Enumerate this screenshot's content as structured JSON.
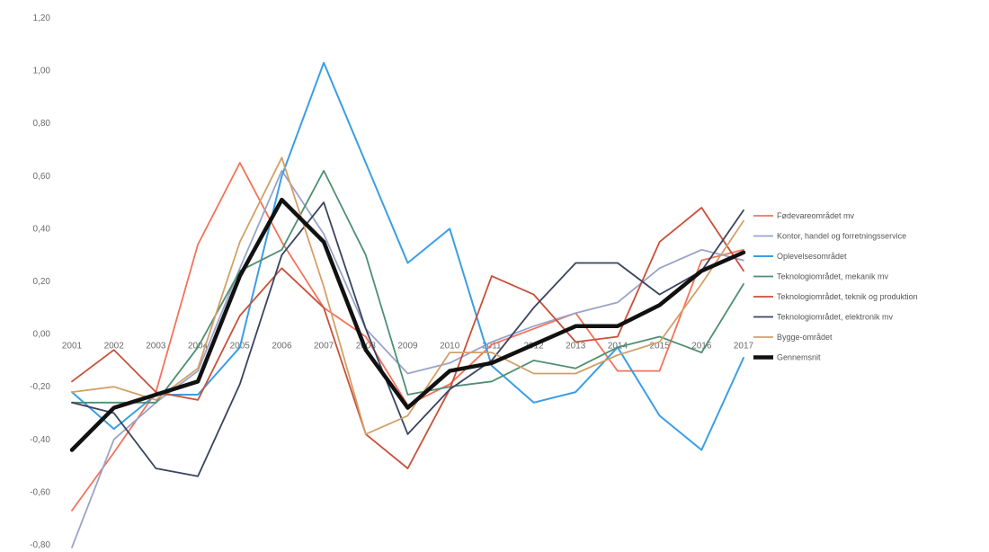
{
  "chart_data": {
    "type": "line",
    "title": "",
    "xlabel": "",
    "ylabel": "",
    "ylim": [
      -0.8,
      1.2
    ],
    "yticks": [
      -0.8,
      -0.6,
      -0.4,
      -0.2,
      0.0,
      0.2,
      0.4,
      0.6,
      0.8,
      1.0,
      1.2
    ],
    "ytick_labels": [
      "-0,80",
      "-0,60",
      "-0,40",
      "-0,20",
      "0,00",
      "0,20",
      "0,40",
      "0,60",
      "0,80",
      "1,00",
      "1,20"
    ],
    "categories": [
      "2001",
      "2002",
      "2003",
      "2004",
      "2005",
      "2006",
      "2007",
      "2008",
      "2009",
      "2010",
      "2011",
      "2012",
      "2013",
      "2014",
      "2015",
      "2016",
      "2017"
    ],
    "category_labels": [
      "2001",
      "2002",
      "2003",
      "2004",
      "2005",
      "2006",
      "2007",
      "2008",
      "2009",
      "2010",
      "2011",
      "2012",
      "2013",
      "2014",
      "2015",
      "2016",
      "2017"
    ],
    "legend_position": "right",
    "grid": false,
    "series": [
      {
        "name": "Fødevareområdet mv",
        "color": "#f4725a",
        "width": 1.8,
        "values": [
          -0.67,
          -0.45,
          -0.22,
          0.34,
          0.65,
          0.35,
          0.1,
          -0.01,
          -0.27,
          -0.19,
          -0.04,
          0.02,
          0.08,
          -0.14,
          -0.14,
          0.28,
          0.32
        ]
      },
      {
        "name": "Kontor, handel og forretningsservice",
        "color": "#9aa3c9",
        "width": 1.8,
        "values": [
          -0.81,
          -0.4,
          -0.26,
          -0.14,
          0.25,
          0.62,
          0.38,
          0.02,
          -0.15,
          -0.11,
          -0.03,
          0.03,
          0.08,
          0.12,
          0.25,
          0.32,
          0.28
        ]
      },
      {
        "name": "Oplevelsesområdet",
        "color": "#3a9ee4",
        "width": 2.0,
        "values": [
          -0.22,
          -0.36,
          -0.23,
          -0.23,
          -0.05,
          0.6,
          1.03,
          0.65,
          0.27,
          0.4,
          -0.12,
          -0.26,
          -0.22,
          -0.05,
          -0.31,
          -0.44,
          -0.09
        ]
      },
      {
        "name": "Teknologiområdet, mekanik mv",
        "color": "#4f8f72",
        "width": 1.8,
        "values": [
          -0.26,
          -0.26,
          -0.26,
          -0.05,
          0.24,
          0.32,
          0.62,
          0.3,
          -0.23,
          -0.2,
          -0.18,
          -0.1,
          -0.13,
          -0.05,
          -0.01,
          -0.07,
          0.19
        ]
      },
      {
        "name": "Teknologiområdet, teknik og produktion",
        "color": "#c9503a",
        "width": 1.8,
        "values": [
          -0.18,
          -0.06,
          -0.22,
          -0.25,
          0.07,
          0.25,
          0.1,
          -0.38,
          -0.51,
          -0.21,
          0.22,
          0.15,
          -0.03,
          -0.01,
          0.35,
          0.48,
          0.24
        ]
      },
      {
        "name": "Teknologiområdet, elektronik mv",
        "color": "#3a4460",
        "width": 1.8,
        "values": [
          -0.26,
          -0.3,
          -0.51,
          -0.54,
          -0.19,
          0.3,
          0.5,
          0.02,
          -0.38,
          -0.21,
          -0.1,
          0.1,
          0.27,
          0.27,
          0.15,
          0.24,
          0.47
        ]
      },
      {
        "name": "Bygge-området",
        "color": "#d2a067",
        "width": 1.8,
        "values": [
          -0.22,
          -0.2,
          -0.25,
          -0.13,
          0.35,
          0.67,
          0.18,
          -0.38,
          -0.31,
          -0.07,
          -0.07,
          -0.15,
          -0.15,
          -0.08,
          -0.03,
          0.19,
          0.43
        ]
      },
      {
        "name": "Gennemsnit",
        "color": "#111111",
        "width": 4.5,
        "values": [
          -0.44,
          -0.28,
          -0.23,
          -0.18,
          0.22,
          0.51,
          0.35,
          -0.06,
          -0.28,
          -0.14,
          -0.11,
          -0.04,
          0.03,
          0.03,
          0.11,
          0.24,
          0.31
        ]
      }
    ]
  }
}
